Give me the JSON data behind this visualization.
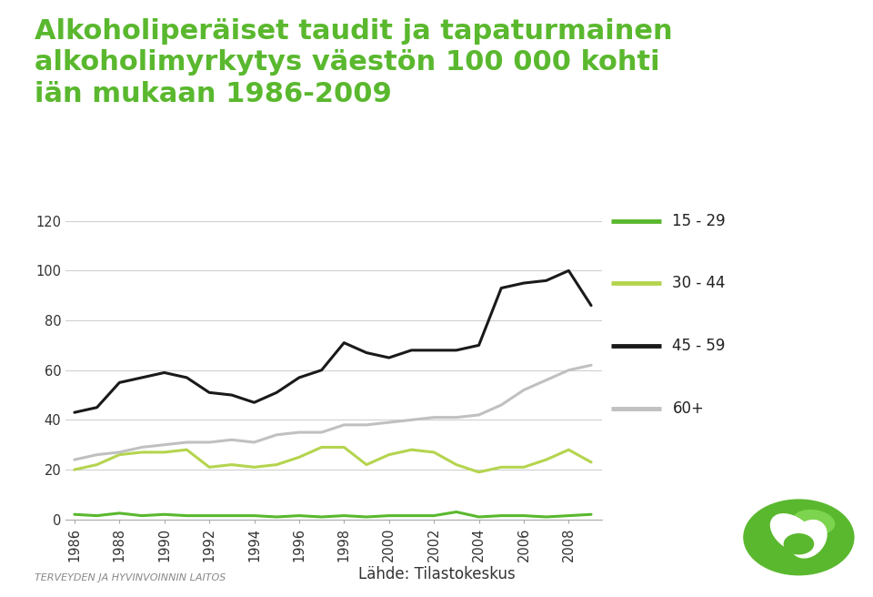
{
  "title_line1": "Alkoholiperäiset taudit ja tapaturmainen",
  "title_line2": "alkoholimyrkytys väestön 100 000 kohti",
  "title_line3": "iän mukaan 1986-2009",
  "title_color": "#5ab82e",
  "background_color": "#ffffff",
  "years": [
    1986,
    1987,
    1988,
    1989,
    1990,
    1991,
    1992,
    1993,
    1994,
    1995,
    1996,
    1997,
    1998,
    1999,
    2000,
    2001,
    2002,
    2003,
    2004,
    2005,
    2006,
    2007,
    2008,
    2009
  ],
  "series": {
    "15 - 29": {
      "color": "#5ab82e",
      "values": [
        2.0,
        1.5,
        2.5,
        1.5,
        2.0,
        1.5,
        1.5,
        1.5,
        1.5,
        1.0,
        1.5,
        1.0,
        1.5,
        1.0,
        1.5,
        1.5,
        1.5,
        3.0,
        1.0,
        1.5,
        1.5,
        1.0,
        1.5,
        2.0
      ]
    },
    "30 - 44": {
      "color": "#b5d44e",
      "values": [
        20,
        22,
        26,
        27,
        27,
        28,
        21,
        22,
        21,
        22,
        25,
        29,
        29,
        22,
        26,
        28,
        27,
        22,
        19,
        21,
        21,
        24,
        28,
        23
      ]
    },
    "45 - 59": {
      "color": "#1a1a1a",
      "values": [
        43,
        45,
        55,
        57,
        59,
        57,
        51,
        50,
        47,
        51,
        57,
        60,
        71,
        67,
        65,
        68,
        68,
        68,
        70,
        93,
        95,
        96,
        100,
        86
      ]
    },
    "60+": {
      "color": "#c0c0c0",
      "values": [
        24,
        26,
        27,
        29,
        30,
        31,
        31,
        32,
        31,
        34,
        35,
        35,
        38,
        38,
        39,
        40,
        41,
        41,
        42,
        46,
        52,
        56,
        60,
        62
      ]
    }
  },
  "ylim": [
    0,
    120
  ],
  "yticks": [
    0,
    20,
    40,
    60,
    80,
    100,
    120
  ],
  "xticks": [
    1986,
    1988,
    1990,
    1992,
    1994,
    1996,
    1998,
    2000,
    2002,
    2004,
    2006,
    2008
  ],
  "grid_color": "#d0d0d0",
  "footer_left": "TERVEYDEN JA HYVINVOINNIN LAITOS",
  "footer_right": "Lähde: Tilastokeskus",
  "legend_order": [
    "15 - 29",
    "30 - 44",
    "45 - 59",
    "60+"
  ],
  "bottom_bar_color": "#7dc142"
}
